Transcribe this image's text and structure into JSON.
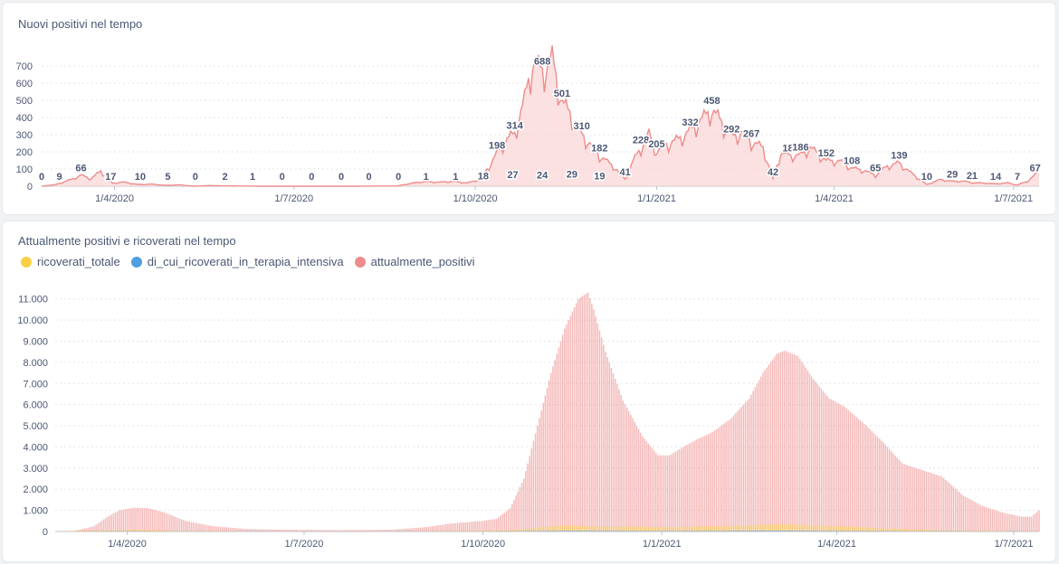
{
  "colors": {
    "positive": "#ef8c8c",
    "positive_fill": "#fad7d7",
    "ricoverati": "#f9cf48",
    "terapia": "#509ee3",
    "text": "#4c5773",
    "axis": "#a1a8b5"
  },
  "chart_data": [
    {
      "type": "area",
      "title": "Nuovi positivi nel tempo",
      "xlabel": "",
      "ylabel": "",
      "x_range": [
        "2020-02-24",
        "2021-07-14"
      ],
      "ylim": [
        0,
        780
      ],
      "yticks": [
        0,
        100,
        200,
        300,
        400,
        500,
        600,
        700
      ],
      "ytick_labels": [
        "0",
        "100",
        "200",
        "300",
        "400",
        "500",
        "600",
        "700"
      ],
      "xticks": [
        "2020-04-01",
        "2020-07-01",
        "2020-10-01",
        "2021-01-01",
        "2021-04-01",
        "2021-07-01"
      ],
      "xtick_labels": [
        "1/4/2020",
        "1/7/2020",
        "1/10/2020",
        "1/1/2021",
        "1/4/2021",
        "1/7/2021"
      ],
      "grid": "horizontal dotted",
      "series": [
        {
          "name": "",
          "points": [
            [
              "2020-02-24",
              0
            ],
            [
              "2020-03-02",
              9
            ],
            [
              "2020-03-10",
              40
            ],
            [
              "2020-03-15",
              66
            ],
            [
              "2020-03-20",
              45
            ],
            [
              "2020-03-25",
              90
            ],
            [
              "2020-03-31",
              17
            ],
            [
              "2020-04-05",
              25
            ],
            [
              "2020-04-13",
              10
            ],
            [
              "2020-04-20",
              12
            ],
            [
              "2020-04-27",
              5
            ],
            [
              "2020-05-04",
              8
            ],
            [
              "2020-05-11",
              0
            ],
            [
              "2020-05-20",
              4
            ],
            [
              "2020-05-25",
              2
            ],
            [
              "2020-06-05",
              1
            ],
            [
              "2020-06-15",
              0
            ],
            [
              "2020-06-27",
              0
            ],
            [
              "2020-07-08",
              0
            ],
            [
              "2020-07-20",
              0
            ],
            [
              "2020-07-31",
              0
            ],
            [
              "2020-08-12",
              1
            ],
            [
              "2020-08-22",
              1
            ],
            [
              "2020-08-30",
              18
            ],
            [
              "2020-09-05",
              27
            ],
            [
              "2020-09-13",
              24
            ],
            [
              "2020-09-20",
              29
            ],
            [
              "2020-09-27",
              19
            ],
            [
              "2020-10-04",
              45
            ],
            [
              "2020-10-08",
              120
            ],
            [
              "2020-10-12",
              198
            ],
            [
              "2020-10-17",
              280
            ],
            [
              "2020-10-21",
              314
            ],
            [
              "2020-10-26",
              520
            ],
            [
              "2020-10-30",
              740
            ],
            [
              "2020-11-04",
              688
            ],
            [
              "2020-11-09",
              760
            ],
            [
              "2020-11-14",
              501
            ],
            [
              "2020-11-19",
              420
            ],
            [
              "2020-11-24",
              310
            ],
            [
              "2020-11-29",
              240
            ],
            [
              "2020-12-03",
              182
            ],
            [
              "2020-12-10",
              120
            ],
            [
              "2020-12-16",
              41
            ],
            [
              "2020-12-20",
              150
            ],
            [
              "2020-12-24",
              228
            ],
            [
              "2020-12-28",
              310
            ],
            [
              "2021-01-01",
              205
            ],
            [
              "2021-01-06",
              250
            ],
            [
              "2021-01-12",
              280
            ],
            [
              "2021-01-18",
              332
            ],
            [
              "2021-01-24",
              400
            ],
            [
              "2021-01-29",
              458
            ],
            [
              "2021-02-03",
              380
            ],
            [
              "2021-02-08",
              292
            ],
            [
              "2021-02-13",
              320
            ],
            [
              "2021-02-18",
              267
            ],
            [
              "2021-02-24",
              230
            ],
            [
              "2021-03-01",
              42
            ],
            [
              "2021-03-05",
              200
            ],
            [
              "2021-03-10",
              182
            ],
            [
              "2021-03-15",
              186
            ],
            [
              "2021-03-20",
              230
            ],
            [
              "2021-03-28",
              152
            ],
            [
              "2021-04-04",
              150
            ],
            [
              "2021-04-10",
              108
            ],
            [
              "2021-04-16",
              95
            ],
            [
              "2021-04-22",
              65
            ],
            [
              "2021-04-28",
              120
            ],
            [
              "2021-05-04",
              139
            ],
            [
              "2021-05-10",
              80
            ],
            [
              "2021-05-18",
              10
            ],
            [
              "2021-05-25",
              40
            ],
            [
              "2021-05-31",
              29
            ],
            [
              "2021-06-06",
              30
            ],
            [
              "2021-06-10",
              21
            ],
            [
              "2021-06-18",
              18
            ],
            [
              "2021-06-22",
              14
            ],
            [
              "2021-06-28",
              20
            ],
            [
              "2021-07-03",
              7
            ],
            [
              "2021-07-08",
              30
            ],
            [
              "2021-07-12",
              67
            ],
            [
              "2021-07-14",
              110
            ]
          ]
        }
      ],
      "data_labels": [
        [
          "2020-02-24",
          0,
          "0"
        ],
        [
          "2020-03-04",
          9,
          "9"
        ],
        [
          "2020-03-15",
          66,
          "66"
        ],
        [
          "2020-03-30",
          17,
          "17"
        ],
        [
          "2020-04-14",
          10,
          "10"
        ],
        [
          "2020-04-28",
          5,
          "5"
        ],
        [
          "2020-05-12",
          0,
          "0"
        ],
        [
          "2020-05-27",
          2,
          "2"
        ],
        [
          "2020-06-10",
          1,
          "1"
        ],
        [
          "2020-06-25",
          0,
          "0"
        ],
        [
          "2020-07-10",
          0,
          "0"
        ],
        [
          "2020-07-25",
          0,
          "0"
        ],
        [
          "2020-08-08",
          0,
          "0"
        ],
        [
          "2020-08-23",
          0,
          "0"
        ],
        [
          "2020-09-06",
          1,
          "1"
        ],
        [
          "2020-09-21",
          1,
          "1"
        ],
        [
          "2020-10-05",
          18,
          "18"
        ],
        [
          "2020-10-20",
          27,
          "27"
        ],
        [
          "2020-11-04",
          24,
          "24"
        ],
        [
          "2020-11-19",
          29,
          "29"
        ],
        [
          "2020-12-03",
          19,
          "19"
        ],
        [
          "2020-10-12",
          198,
          "198"
        ],
        [
          "2020-10-21",
          314,
          "314"
        ],
        [
          "2020-11-04",
          688,
          "688"
        ],
        [
          "2020-11-14",
          501,
          "501"
        ],
        [
          "2020-11-24",
          310,
          "310"
        ],
        [
          "2020-12-03",
          182,
          "182"
        ],
        [
          "2020-12-16",
          41,
          "41"
        ],
        [
          "2020-12-24",
          228,
          "228"
        ],
        [
          "2021-01-01",
          205,
          "205"
        ],
        [
          "2021-01-18",
          332,
          "332"
        ],
        [
          "2021-01-29",
          458,
          "458"
        ],
        [
          "2021-02-08",
          292,
          "292"
        ],
        [
          "2021-02-18",
          267,
          "267"
        ],
        [
          "2021-03-01",
          42,
          "42"
        ],
        [
          "2021-03-10",
          182,
          "182"
        ],
        [
          "2021-03-15",
          186,
          "186"
        ],
        [
          "2021-03-28",
          152,
          "152"
        ],
        [
          "2021-04-10",
          108,
          "108"
        ],
        [
          "2021-04-22",
          65,
          "65"
        ],
        [
          "2021-05-04",
          139,
          "139"
        ],
        [
          "2021-05-18",
          10,
          "10"
        ],
        [
          "2021-05-31",
          29,
          "29"
        ],
        [
          "2021-06-10",
          21,
          "21"
        ],
        [
          "2021-06-22",
          14,
          "14"
        ],
        [
          "2021-07-03",
          7,
          "7"
        ],
        [
          "2021-07-12",
          67,
          "67"
        ]
      ]
    },
    {
      "type": "bar",
      "title": "Attualmente positivi e ricoverati nel tempo",
      "xlabel": "",
      "ylabel": "",
      "x_range": [
        "2020-02-24",
        "2021-07-14"
      ],
      "ylim": [
        0,
        11500
      ],
      "yticks": [
        0,
        1000,
        2000,
        3000,
        4000,
        5000,
        6000,
        7000,
        8000,
        9000,
        10000,
        11000
      ],
      "ytick_labels": [
        "0",
        "1.000",
        "2.000",
        "3.000",
        "4.000",
        "5.000",
        "6.000",
        "7.000",
        "8.000",
        "9.000",
        "10.000",
        "11.000"
      ],
      "xticks": [
        "2020-04-01",
        "2020-07-01",
        "2020-10-01",
        "2021-01-01",
        "2021-04-01",
        "2021-07-01"
      ],
      "xtick_labels": [
        "1/4/2020",
        "1/7/2020",
        "1/10/2020",
        "1/1/2021",
        "1/4/2021",
        "1/7/2021"
      ],
      "grid": "horizontal dotted",
      "legend": "top-left",
      "series": [
        {
          "name": "ricoverati_totale",
          "points": [
            [
              "2020-02-24",
              0
            ],
            [
              "2020-03-20",
              60
            ],
            [
              "2020-04-05",
              80
            ],
            [
              "2020-05-01",
              30
            ],
            [
              "2020-06-01",
              10
            ],
            [
              "2020-09-01",
              10
            ],
            [
              "2020-10-15",
              60
            ],
            [
              "2020-11-10",
              280
            ],
            [
              "2020-12-01",
              250
            ],
            [
              "2021-01-01",
              200
            ],
            [
              "2021-02-01",
              250
            ],
            [
              "2021-03-01",
              350
            ],
            [
              "2021-03-20",
              300
            ],
            [
              "2021-04-15",
              200
            ],
            [
              "2021-05-15",
              80
            ],
            [
              "2021-06-15",
              30
            ],
            [
              "2021-07-14",
              20
            ]
          ]
        },
        {
          "name": "di_cui_ricoverati_in_terapia_intensiva",
          "points": [
            [
              "2020-02-24",
              0
            ],
            [
              "2020-04-01",
              15
            ],
            [
              "2020-05-01",
              5
            ],
            [
              "2020-10-01",
              5
            ],
            [
              "2020-11-15",
              40
            ],
            [
              "2021-01-01",
              25
            ],
            [
              "2021-03-01",
              45
            ],
            [
              "2021-05-01",
              15
            ],
            [
              "2021-07-14",
              5
            ]
          ]
        },
        {
          "name": "attualmente_positivi",
          "points": [
            [
              "2020-02-24",
              0
            ],
            [
              "2020-03-05",
              30
            ],
            [
              "2020-03-15",
              250
            ],
            [
              "2020-03-22",
              700
            ],
            [
              "2020-03-28",
              1000
            ],
            [
              "2020-04-04",
              1120
            ],
            [
              "2020-04-12",
              1100
            ],
            [
              "2020-04-20",
              900
            ],
            [
              "2020-05-01",
              500
            ],
            [
              "2020-05-15",
              250
            ],
            [
              "2020-06-01",
              120
            ],
            [
              "2020-06-20",
              80
            ],
            [
              "2020-07-20",
              60
            ],
            [
              "2020-08-15",
              80
            ],
            [
              "2020-09-01",
              200
            ],
            [
              "2020-09-15",
              380
            ],
            [
              "2020-10-01",
              500
            ],
            [
              "2020-10-08",
              600
            ],
            [
              "2020-10-15",
              1100
            ],
            [
              "2020-10-22",
              2500
            ],
            [
              "2020-10-29",
              5000
            ],
            [
              "2020-11-05",
              7500
            ],
            [
              "2020-11-12",
              9600
            ],
            [
              "2020-11-19",
              11000
            ],
            [
              "2020-11-24",
              11300
            ],
            [
              "2020-11-27",
              10500
            ],
            [
              "2020-12-03",
              8500
            ],
            [
              "2020-12-12",
              6200
            ],
            [
              "2020-12-22",
              4500
            ],
            [
              "2020-12-30",
              3600
            ],
            [
              "2021-01-05",
              3600
            ],
            [
              "2021-01-12",
              4000
            ],
            [
              "2021-01-20",
              4400
            ],
            [
              "2021-01-27",
              4700
            ],
            [
              "2021-02-05",
              5300
            ],
            [
              "2021-02-15",
              6300
            ],
            [
              "2021-02-22",
              7500
            ],
            [
              "2021-03-01",
              8400
            ],
            [
              "2021-03-05",
              8550
            ],
            [
              "2021-03-12",
              8300
            ],
            [
              "2021-03-20",
              7200
            ],
            [
              "2021-03-28",
              6300
            ],
            [
              "2021-04-05",
              5900
            ],
            [
              "2021-04-15",
              5100
            ],
            [
              "2021-04-25",
              4200
            ],
            [
              "2021-05-05",
              3200
            ],
            [
              "2021-05-15",
              2900
            ],
            [
              "2021-05-25",
              2600
            ],
            [
              "2021-06-05",
              1700
            ],
            [
              "2021-06-15",
              1200
            ],
            [
              "2021-06-25",
              900
            ],
            [
              "2021-07-05",
              700
            ],
            [
              "2021-07-10",
              700
            ],
            [
              "2021-07-14",
              1000
            ]
          ]
        }
      ]
    }
  ]
}
